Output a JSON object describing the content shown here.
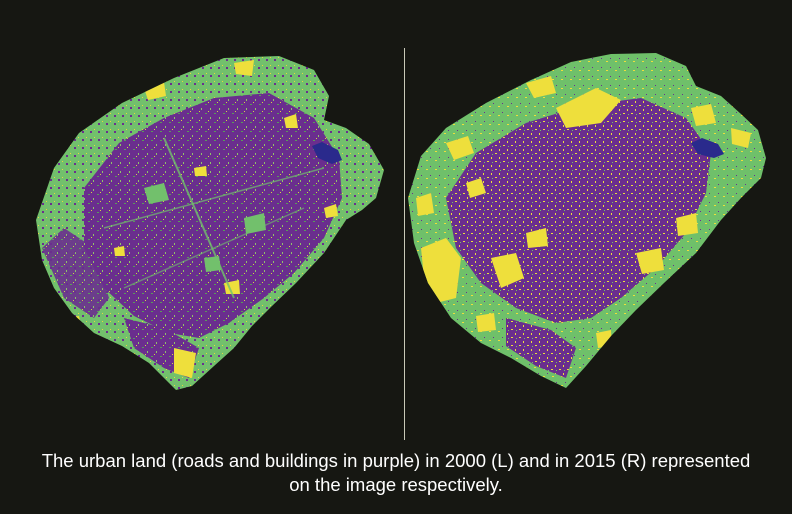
{
  "caption": {
    "line1": "The urban land (roads and buildings in purple) in 2000 (L) and in 2015 (R) represented",
    "line2": "on the image respectively."
  },
  "legend_colors": {
    "urban_land": "#6a2e8e",
    "vegetation": "#6fc06a",
    "bare_land": "#eedf3c",
    "water": "#2a2a8c",
    "background": "#161712"
  },
  "panels": [
    {
      "id": "2000",
      "side": "L"
    },
    {
      "id": "2015",
      "side": "R"
    }
  ]
}
